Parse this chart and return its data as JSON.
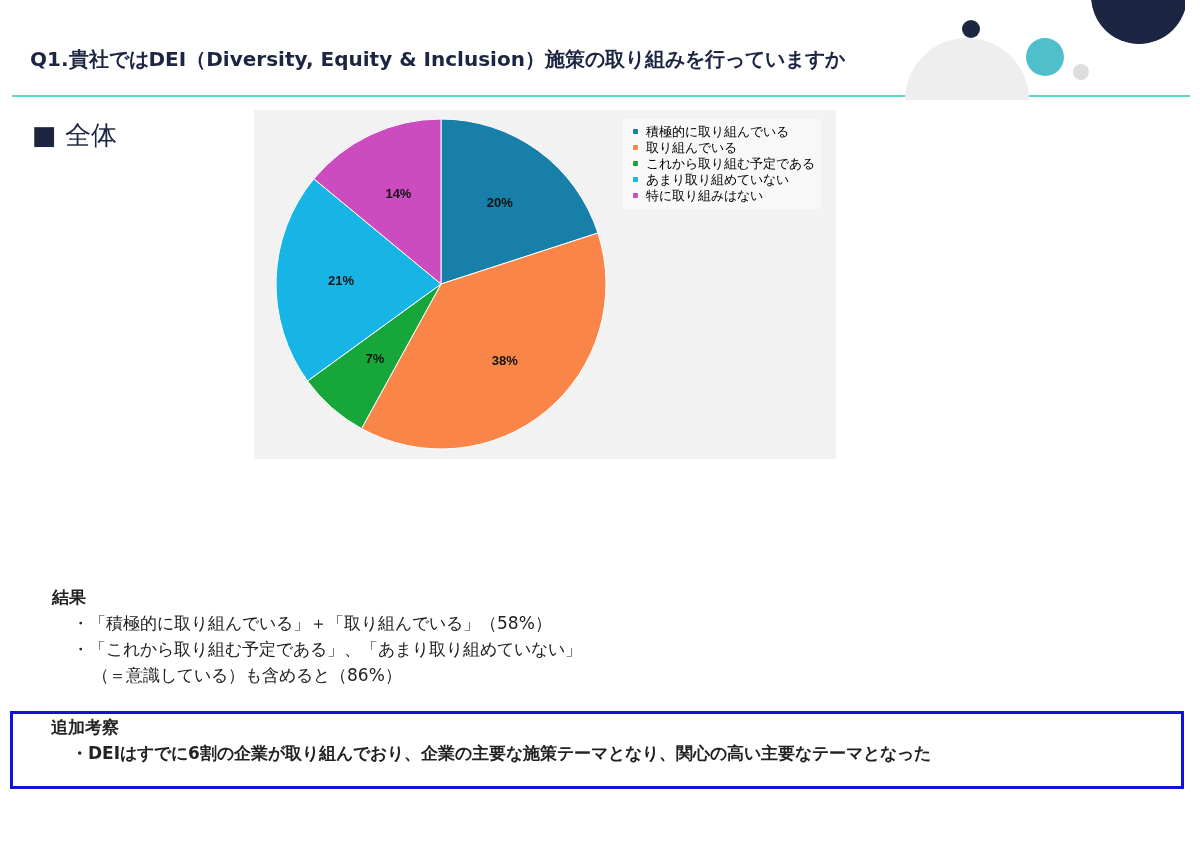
{
  "chart_data": {
    "type": "pie",
    "title": "Q1.貴社ではDEI（Diversity, Equity & Inclusion）施策の取り組みを行っていますか",
    "subtitle": "■ 全体",
    "categories": [
      "積極的に取り組んでいる",
      "取り組んでいる",
      "これから取り組む予定である",
      "あまり取り組めていない",
      "特に取り組みはない"
    ],
    "values": [
      20,
      38,
      7,
      21,
      14
    ],
    "colors": [
      "#177fa8",
      "#f98648",
      "#16a63a",
      "#16b5e6",
      "#cc4cbf"
    ],
    "value_labels": [
      "20%",
      "38%",
      "7%",
      "21%",
      "14%"
    ],
    "legend": "right",
    "annotations": [
      "結果",
      "・「積極的に取り組んでいる」＋「取り組んでいる」（58%）",
      "・「これから取り組む予定である」、「あまり取り組めていない」",
      "（＝意識している）も含めると（86%）",
      "追加考察",
      "・DEIはすでに6割の企業が取り組んでおり、企業の主要な施策テーマとなり、関心の高い主要なテーマとなった"
    ]
  }
}
